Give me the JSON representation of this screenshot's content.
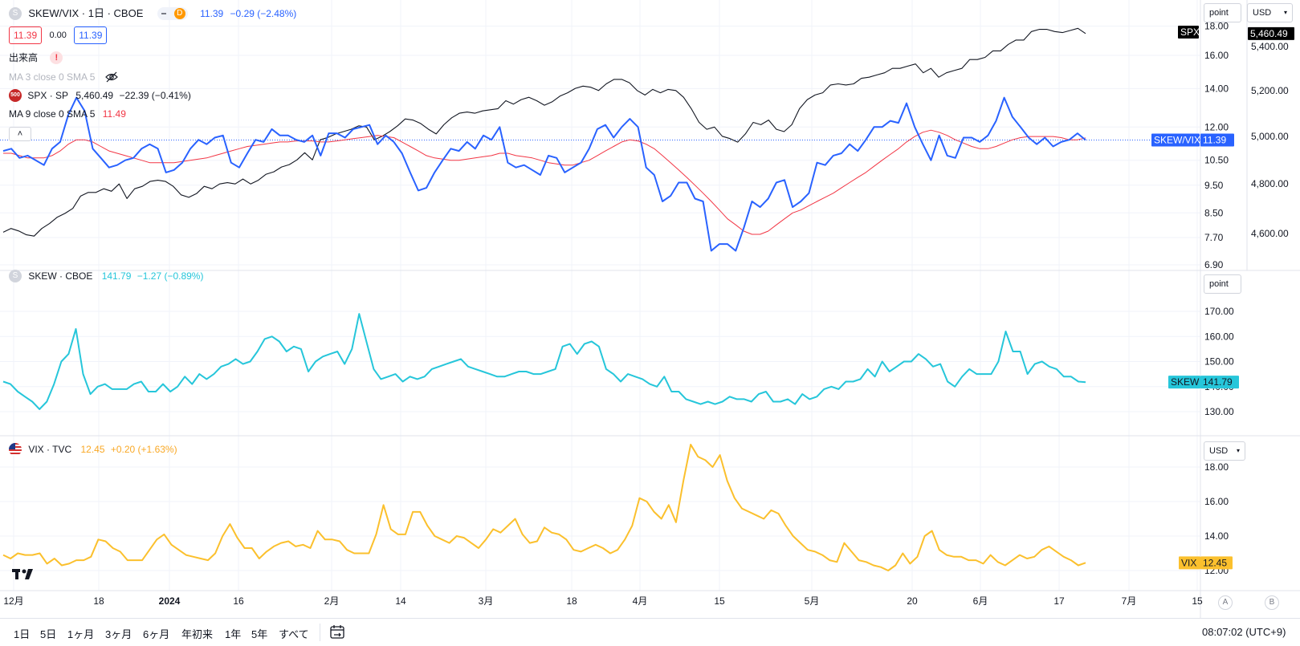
{
  "header": {
    "symbol": "SKEW/VIX · 1日 · CBOE",
    "symbol_icon": "S",
    "interval_badge": "D",
    "price": "11.39",
    "change": "−0.29 (−2.48%)",
    "sell_value": "11.39",
    "spread": "0.00",
    "buy_value": "11.39"
  },
  "indicators": {
    "volume_label": "出来高",
    "ma3_label": "MA 3 close 0 SMA 5",
    "spx_label": "SPX · SP",
    "spx_badge": "500",
    "spx_value": "5,460.49",
    "spx_change": "−22.39 (−0.41%)",
    "ma9_label": "MA 9 close 0 SMA 5",
    "ma9_value": "11.49"
  },
  "pane2": {
    "label": "SKEW · CBOE",
    "icon": "S",
    "price": "141.79",
    "change": "−1.27 (−0.89%)"
  },
  "pane3": {
    "label": "VIX · TVC",
    "price": "12.45",
    "change": "+0.20 (+1.63%)"
  },
  "scale_controls": {
    "pane1_left": "point",
    "pane1_right": "USD",
    "pane2": "point",
    "pane3": "USD"
  },
  "axis_corner": {
    "left": "A",
    "right": "B"
  },
  "tags": {
    "spx_name": "SPX",
    "spx_val": "5,460.49",
    "sv_name": "SKEW/VIX",
    "sv_val": "11.39",
    "skew_name": "SKEW",
    "skew_val": "141.79",
    "vix_name": "VIX",
    "vix_val": "12.45"
  },
  "bottom_bar": {
    "ranges": [
      "1日",
      "5日",
      "1ヶ月",
      "3ヶ月",
      "6ヶ月",
      "年初来",
      "1年",
      "5年",
      "すべて"
    ],
    "time": "08:07:02 (UTC+9)"
  },
  "colors": {
    "skewvix": "#2962ff",
    "ma": "#f23645",
    "spx": "#131722",
    "skew": "#26c6da",
    "vix": "#fbc02d"
  },
  "chart_data": [
    {
      "type": "line",
      "title": "SKEW/VIX · 1日 · CBOE",
      "x_start": "2023-12-08",
      "x_end": "2024-06-28",
      "x_ticks": [
        "12月",
        "18",
        "2024",
        "16",
        "2月",
        "14",
        "3月",
        "18",
        "4月",
        "15",
        "5月",
        "20",
        "6月",
        "17",
        "7月",
        "15"
      ],
      "y_left_ticks": [
        "6.90",
        "7.70",
        "8.50",
        "9.50",
        "10.50",
        "12.00",
        "14.00",
        "16.00",
        "18.00"
      ],
      "y_right_ticks": [
        "4,600.00",
        "4,800.00",
        "5,000.00",
        "5,200.00",
        "5,400.00"
      ],
      "y_log": true,
      "series": [
        {
          "name": "SKEW/VIX",
          "axis": "left",
          "values": [
            10.9,
            11.0,
            10.6,
            10.7,
            10.5,
            10.3,
            11.0,
            11.3,
            12.6,
            13.5,
            12.8,
            11.0,
            10.6,
            10.2,
            10.3,
            10.5,
            10.6,
            11.0,
            11.2,
            11.0,
            10.0,
            10.1,
            10.4,
            11.0,
            11.4,
            11.2,
            11.5,
            11.6,
            10.4,
            10.2,
            10.8,
            11.4,
            11.3,
            11.9,
            11.6,
            11.6,
            11.4,
            11.3,
            11.6,
            10.7,
            11.7,
            11.7,
            11.5,
            11.9,
            12.0,
            12.1,
            11.2,
            11.6,
            11.3,
            10.8,
            10.0,
            9.3,
            9.4,
            10.0,
            10.5,
            11.0,
            10.9,
            11.3,
            11.0,
            11.6,
            11.4,
            12.0,
            10.4,
            10.2,
            10.3,
            10.1,
            9.9,
            10.7,
            10.6,
            10.0,
            10.2,
            10.4,
            11.0,
            11.9,
            12.1,
            11.5,
            12.0,
            12.4,
            12.0,
            10.2,
            9.9,
            8.9,
            9.1,
            9.6,
            9.6,
            9.0,
            8.9,
            7.3,
            7.5,
            7.5,
            7.3,
            8.0,
            8.9,
            8.7,
            9.0,
            9.6,
            9.7,
            8.7,
            8.9,
            9.2,
            10.4,
            10.3,
            10.7,
            10.8,
            11.2,
            10.9,
            11.4,
            12.0,
            12.0,
            12.3,
            12.2,
            13.2,
            12.0,
            11.2,
            10.5,
            11.6,
            10.7,
            10.6,
            11.5,
            11.5,
            11.3,
            11.6,
            12.3,
            13.5,
            12.5,
            12.0,
            11.5,
            11.2,
            11.5,
            11.1,
            11.3,
            11.4,
            11.7,
            11.39
          ]
        },
        {
          "name": "MA 9",
          "axis": "left",
          "values": [
            10.8,
            10.8,
            10.7,
            10.6,
            10.6,
            10.6,
            10.7,
            10.9,
            11.2,
            11.4,
            11.4,
            11.3,
            11.1,
            10.9,
            10.8,
            10.7,
            10.6,
            10.5,
            10.4,
            10.4,
            10.4,
            10.4,
            10.45,
            10.5,
            10.55,
            10.6,
            10.7,
            10.8,
            10.9,
            11.0,
            11.1,
            11.15,
            11.2,
            11.25,
            11.3,
            11.3,
            11.35,
            11.35,
            11.35,
            11.3,
            11.3,
            11.35,
            11.4,
            11.45,
            11.5,
            11.55,
            11.6,
            11.55,
            11.5,
            11.3,
            11.1,
            10.9,
            10.7,
            10.6,
            10.55,
            10.5,
            10.5,
            10.55,
            10.6,
            10.65,
            10.7,
            10.8,
            10.8,
            10.7,
            10.65,
            10.6,
            10.5,
            10.4,
            10.35,
            10.3,
            10.3,
            10.4,
            10.5,
            10.7,
            10.9,
            11.1,
            11.3,
            11.4,
            11.35,
            11.2,
            11.0,
            10.7,
            10.4,
            10.1,
            9.8,
            9.5,
            9.2,
            8.9,
            8.6,
            8.3,
            8.1,
            7.9,
            7.8,
            7.8,
            7.9,
            8.1,
            8.3,
            8.5,
            8.6,
            8.75,
            8.9,
            9.05,
            9.2,
            9.4,
            9.6,
            9.8,
            10.0,
            10.25,
            10.5,
            10.75,
            11.0,
            11.3,
            11.55,
            11.75,
            11.85,
            11.75,
            11.6,
            11.4,
            11.25,
            11.1,
            11.0,
            11.0,
            11.1,
            11.25,
            11.4,
            11.5,
            11.55,
            11.55,
            11.55,
            11.55,
            11.5,
            11.4,
            11.4,
            11.49
          ]
        },
        {
          "name": "SPX",
          "axis": "right",
          "values": [
            4605,
            4620,
            4610,
            4595,
            4590,
            4620,
            4640,
            4665,
            4680,
            4700,
            4750,
            4765,
            4765,
            4780,
            4770,
            4800,
            4740,
            4780,
            4790,
            4810,
            4815,
            4810,
            4790,
            4755,
            4745,
            4760,
            4790,
            4780,
            4800,
            4805,
            4800,
            4820,
            4800,
            4815,
            4840,
            4850,
            4870,
            4880,
            4900,
            4930,
            4900,
            4985,
            4995,
            5010,
            5020,
            5030,
            5045,
            5040,
            4985,
            5000,
            5020,
            5045,
            5075,
            5070,
            5055,
            5030,
            5010,
            5050,
            5080,
            5100,
            5105,
            5100,
            5110,
            5115,
            5120,
            5155,
            5140,
            5160,
            5170,
            5155,
            5135,
            5150,
            5175,
            5190,
            5210,
            5220,
            5215,
            5200,
            5230,
            5250,
            5250,
            5235,
            5200,
            5180,
            5205,
            5190,
            5205,
            5200,
            5170,
            5120,
            5060,
            5030,
            5040,
            5000,
            4990,
            4975,
            5010,
            5060,
            5050,
            5070,
            5030,
            5020,
            5050,
            5120,
            5160,
            5180,
            5190,
            5225,
            5230,
            5225,
            5230,
            5255,
            5260,
            5270,
            5280,
            5300,
            5300,
            5310,
            5320,
            5280,
            5300,
            5260,
            5280,
            5290,
            5300,
            5340,
            5340,
            5350,
            5380,
            5380,
            5410,
            5430,
            5430,
            5470,
            5480,
            5480,
            5470,
            5465,
            5475,
            5485,
            5460.49
          ]
        }
      ]
    },
    {
      "type": "line",
      "title": "SKEW · CBOE",
      "y_ticks": [
        "130.00",
        "140.00",
        "150.00",
        "160.00",
        "170.00"
      ],
      "series": [
        {
          "name": "SKEW",
          "values": [
            142,
            141,
            138,
            136,
            134,
            131,
            134,
            141,
            150,
            153,
            163,
            145,
            137,
            140,
            141,
            139,
            139,
            139,
            141,
            142,
            138,
            138,
            141,
            138,
            140,
            144,
            141,
            145,
            143,
            145,
            148,
            149,
            151,
            149,
            150,
            154,
            159,
            160,
            158,
            154,
            156,
            155,
            146,
            150,
            152,
            153,
            154,
            149,
            155,
            169,
            158,
            147,
            143,
            144,
            145,
            142,
            144,
            143,
            144,
            147,
            148,
            149,
            150,
            151,
            148,
            147,
            146,
            145,
            144,
            144,
            145,
            146,
            146,
            145,
            145,
            146,
            147,
            156,
            157,
            153,
            157,
            158,
            156,
            147,
            145,
            142,
            145,
            144,
            143,
            141,
            140,
            144,
            138,
            138,
            135,
            134,
            133,
            134,
            133,
            134,
            136,
            135,
            135,
            134,
            137,
            138,
            134,
            134,
            135,
            133,
            137,
            135,
            136,
            139,
            140,
            139,
            142,
            142,
            143,
            147,
            144,
            150,
            146,
            148,
            150,
            150,
            153,
            151,
            148,
            149,
            142,
            140,
            144,
            147,
            145,
            145,
            145,
            150,
            162,
            154,
            154,
            145,
            149,
            150,
            148,
            147,
            144,
            144,
            142,
            141.79
          ]
        }
      ]
    },
    {
      "type": "line",
      "title": "VIX · TVC",
      "y_ticks": [
        "12.00",
        "14.00",
        "16.00",
        "18.00"
      ],
      "series": [
        {
          "name": "VIX",
          "values": [
            12.9,
            12.7,
            13.0,
            12.9,
            12.9,
            13.0,
            12.4,
            12.7,
            12.3,
            12.4,
            12.6,
            12.6,
            12.8,
            13.8,
            13.7,
            13.3,
            13.1,
            12.6,
            12.6,
            12.6,
            13.2,
            13.8,
            14.1,
            13.5,
            13.2,
            12.9,
            12.8,
            12.7,
            12.6,
            13.0,
            14.0,
            14.7,
            13.9,
            13.3,
            13.3,
            12.7,
            13.1,
            13.4,
            13.6,
            13.7,
            13.4,
            13.5,
            13.3,
            14.3,
            13.8,
            13.8,
            13.7,
            13.2,
            13.0,
            13.0,
            13.0,
            14.1,
            15.8,
            14.4,
            14.1,
            14.1,
            15.4,
            15.4,
            14.6,
            14.0,
            13.8,
            13.6,
            14.0,
            13.9,
            13.6,
            13.3,
            13.8,
            14.4,
            14.2,
            14.6,
            15.0,
            14.1,
            13.6,
            13.7,
            14.5,
            14.2,
            14.1,
            13.8,
            13.2,
            13.1,
            13.3,
            13.5,
            13.3,
            13.0,
            13.2,
            13.8,
            14.6,
            16.2,
            16.0,
            15.4,
            15.0,
            15.8,
            14.8,
            17.2,
            19.3,
            18.6,
            18.4,
            18.0,
            18.7,
            17.2,
            16.2,
            15.6,
            15.4,
            15.2,
            15.0,
            15.5,
            15.3,
            14.6,
            14.0,
            13.6,
            13.2,
            13.1,
            12.9,
            12.6,
            12.5,
            13.6,
            13.1,
            12.6,
            12.5,
            12.3,
            12.2,
            12.0,
            12.3,
            13.0,
            12.4,
            12.8,
            14.0,
            14.3,
            13.2,
            12.9,
            12.8,
            12.8,
            12.6,
            12.6,
            12.4,
            12.9,
            12.5,
            12.3,
            12.6,
            12.9,
            12.7,
            12.8,
            13.2,
            13.4,
            13.1,
            12.8,
            12.6,
            12.3,
            12.45
          ]
        }
      ]
    }
  ]
}
